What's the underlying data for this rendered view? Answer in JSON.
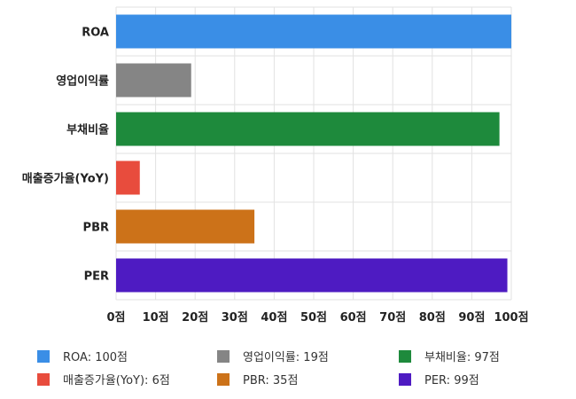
{
  "chart_data": {
    "type": "bar",
    "orientation": "horizontal",
    "categories": [
      "ROA",
      "영업이익률",
      "부채비율",
      "매출증가율(YoY)",
      "PBR",
      "PER"
    ],
    "values": [
      100,
      19,
      97,
      6,
      35,
      99
    ],
    "colors": [
      "#3a8ee6",
      "#858585",
      "#1e8a3c",
      "#e84c3d",
      "#cc7219",
      "#4e1bc2"
    ],
    "xlim": [
      0,
      100
    ],
    "x_ticks": [
      0,
      10,
      20,
      30,
      40,
      50,
      60,
      70,
      80,
      90,
      100
    ],
    "x_tick_suffix": "점",
    "grid": true,
    "legend_position": "bottom",
    "legend": [
      {
        "label": "ROA: 100점",
        "color": "#3a8ee6"
      },
      {
        "label": "영업이익률: 19점",
        "color": "#858585"
      },
      {
        "label": "부채비율: 97점",
        "color": "#1e8a3c"
      },
      {
        "label": "매출증가율(YoY): 6점",
        "color": "#e84c3d"
      },
      {
        "label": "PBR: 35점",
        "color": "#cc7219"
      },
      {
        "label": "PER: 99점",
        "color": "#4e1bc2"
      }
    ]
  }
}
